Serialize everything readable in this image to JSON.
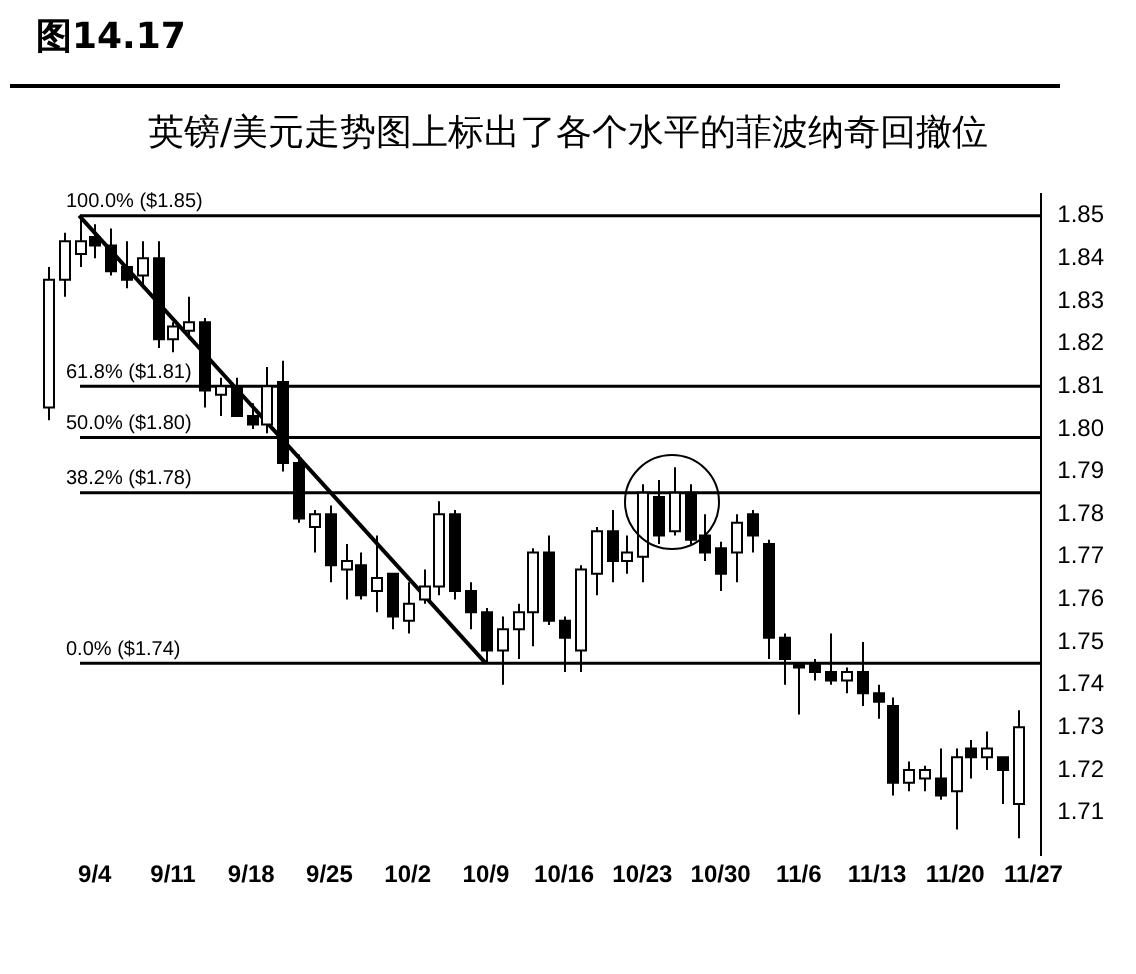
{
  "chart_data": {
    "type": "candlestick",
    "title": "图14.17",
    "subtitle": "英镑/美元走势图上标出了各个水平的菲波纳奇回撤位",
    "categories": [
      null,
      null,
      null,
      "9/4",
      null,
      null,
      null,
      null,
      "9/11",
      null,
      null,
      null,
      null,
      "9/18",
      null,
      null,
      null,
      null,
      "9/25",
      null,
      null,
      null,
      null,
      "10/2",
      null,
      null,
      null,
      null,
      "10/9",
      null,
      null,
      null,
      null,
      "10/16",
      null,
      null,
      null,
      null,
      "10/23",
      null,
      null,
      null,
      null,
      "10/30",
      null,
      null,
      null,
      null,
      "11/6",
      null,
      null,
      null,
      null,
      "11/13",
      null,
      null,
      null,
      null,
      "11/20",
      null,
      null,
      null,
      null,
      "11/27"
    ],
    "ylim": [
      1.7,
      1.855
    ],
    "yticks": [
      1.71,
      1.72,
      1.73,
      1.74,
      1.75,
      1.76,
      1.77,
      1.78,
      1.79,
      {
        "value": 1.8,
        "label": "1.80"
      },
      1.81,
      1.82,
      1.83,
      1.84,
      1.85
    ],
    "ref_lines": [
      {
        "axis": "y",
        "value": 1.85,
        "label": "100.0% ($1.85)"
      },
      {
        "axis": "y",
        "value": 1.81,
        "label": "61.8% ($1.81)"
      },
      {
        "axis": "y",
        "value": 1.798,
        "label": "50.0% ($1.80)"
      },
      {
        "axis": "y",
        "value": 1.785,
        "label": "38.2% ($1.78)"
      },
      {
        "axis": "y",
        "value": 1.745,
        "label": "0.0% ($1.74)"
      }
    ],
    "series": [
      {
        "color": "#000000",
        "colors": [
          "#ffffff",
          "#ffffff",
          "#ffffff",
          "#000000",
          "#000000",
          "#000000",
          "#ffffff",
          "#000000",
          "#ffffff",
          "#ffffff",
          "#000000",
          "#ffffff",
          "#000000",
          "#000000",
          "#ffffff",
          "#000000",
          "#000000",
          "#ffffff",
          "#000000",
          "#ffffff",
          "#000000",
          "#ffffff",
          "#000000",
          "#ffffff",
          "#ffffff",
          "#ffffff",
          "#000000",
          "#000000",
          "#000000",
          "#ffffff",
          "#ffffff",
          "#ffffff",
          "#000000",
          "#000000",
          "#ffffff",
          "#ffffff",
          "#000000",
          "#ffffff",
          "#ffffff",
          "#000000",
          "#ffffff",
          "#000000",
          "#000000",
          "#000000",
          "#ffffff",
          "#000000",
          "#000000",
          "#000000",
          "#000000",
          "#000000",
          "#000000",
          "#ffffff",
          "#000000",
          "#000000",
          "#000000",
          "#ffffff",
          "#ffffff",
          "#000000",
          "#ffffff",
          "#000000",
          "#ffffff",
          "#000000",
          "#ffffff",
          null
        ],
        "ohlc": [
          [
            1.805,
            1.838,
            1.802,
            1.835
          ],
          [
            1.835,
            1.846,
            1.831,
            1.844
          ],
          [
            1.841,
            1.85,
            1.838,
            1.844
          ],
          [
            1.845,
            1.848,
            1.84,
            1.843
          ],
          [
            1.843,
            1.847,
            1.836,
            1.837
          ],
          [
            1.838,
            1.844,
            1.833,
            1.835
          ],
          [
            1.836,
            1.844,
            1.833,
            1.84
          ],
          [
            1.84,
            1.844,
            1.819,
            1.821
          ],
          [
            1.821,
            1.825,
            1.818,
            1.824
          ],
          [
            1.823,
            1.831,
            1.821,
            1.825
          ],
          [
            1.825,
            1.826,
            1.805,
            1.809
          ],
          [
            1.808,
            1.812,
            1.803,
            1.81
          ],
          [
            1.81,
            1.812,
            1.803,
            1.803
          ],
          [
            1.803,
            1.806,
            1.8,
            1.801
          ],
          [
            1.801,
            1.8145,
            1.799,
            1.81
          ],
          [
            1.811,
            1.816,
            1.79,
            1.792
          ],
          [
            1.792,
            1.794,
            1.778,
            1.779
          ],
          [
            1.777,
            1.781,
            1.771,
            1.78
          ],
          [
            1.78,
            1.782,
            1.764,
            1.768
          ],
          [
            1.767,
            1.773,
            1.76,
            1.769
          ],
          [
            1.768,
            1.771,
            1.76,
            1.761
          ],
          [
            1.762,
            1.775,
            1.757,
            1.765
          ],
          [
            1.766,
            1.766,
            1.753,
            1.756
          ],
          [
            1.755,
            1.764,
            1.752,
            1.759
          ],
          [
            1.76,
            1.767,
            1.759,
            1.763
          ],
          [
            1.763,
            1.783,
            1.761,
            1.78
          ],
          [
            1.78,
            1.781,
            1.76,
            1.762
          ],
          [
            1.762,
            1.764,
            1.753,
            1.757
          ],
          [
            1.757,
            1.758,
            1.745,
            1.748
          ],
          [
            1.748,
            1.756,
            1.74,
            1.753
          ],
          [
            1.753,
            1.759,
            1.746,
            1.757
          ],
          [
            1.757,
            1.772,
            1.749,
            1.771
          ],
          [
            1.771,
            1.775,
            1.754,
            1.755
          ],
          [
            1.755,
            1.756,
            1.743,
            1.751
          ],
          [
            1.748,
            1.768,
            1.743,
            1.767
          ],
          [
            1.766,
            1.777,
            1.761,
            1.776
          ],
          [
            1.776,
            1.781,
            1.764,
            1.769
          ],
          [
            1.769,
            1.775,
            1.766,
            1.771
          ],
          [
            1.77,
            1.787,
            1.764,
            1.785
          ],
          [
            1.784,
            1.788,
            1.773,
            1.775
          ],
          [
            1.776,
            1.791,
            1.775,
            1.785
          ],
          [
            1.785,
            1.787,
            1.773,
            1.774
          ],
          [
            1.775,
            1.78,
            1.769,
            1.771
          ],
          [
            1.772,
            1.7735,
            1.762,
            1.766
          ],
          [
            1.771,
            1.78,
            1.764,
            1.778
          ],
          [
            1.78,
            1.781,
            1.771,
            1.775
          ],
          [
            1.773,
            1.774,
            1.746,
            1.751
          ],
          [
            1.751,
            1.752,
            1.74,
            1.746
          ],
          [
            1.745,
            1.745,
            1.733,
            1.744
          ],
          [
            1.745,
            1.746,
            1.741,
            1.743
          ],
          [
            1.743,
            1.752,
            1.74,
            1.741
          ],
          [
            1.741,
            1.744,
            1.738,
            1.743
          ],
          [
            1.743,
            1.75,
            1.735,
            1.738
          ],
          [
            1.738,
            1.74,
            1.732,
            1.736
          ],
          [
            1.735,
            1.737,
            1.714,
            1.717
          ],
          [
            1.717,
            1.722,
            1.715,
            1.72
          ],
          [
            1.718,
            1.721,
            1.715,
            1.72
          ],
          [
            1.718,
            1.725,
            1.713,
            1.714
          ],
          [
            1.715,
            1.725,
            1.706,
            1.723
          ],
          [
            1.725,
            1.727,
            1.718,
            1.723
          ],
          [
            1.723,
            1.729,
            1.72,
            1.725
          ],
          [
            1.723,
            1.723,
            1.712,
            1.72
          ],
          [
            1.712,
            1.734,
            1.704,
            1.73
          ],
          null
        ]
      },
      {
        "type": "line",
        "color": "#000000",
        "values": [
          null,
          null,
          1.85,
          null,
          null,
          null,
          null,
          null,
          null,
          null,
          null,
          null,
          null,
          null,
          null,
          null,
          null,
          null,
          null,
          null,
          null,
          null,
          null,
          null,
          null,
          null,
          null,
          null,
          1.745,
          null,
          null,
          null,
          null,
          null,
          null,
          null,
          null,
          null,
          null,
          null,
          null,
          null,
          null,
          null,
          null,
          null,
          null,
          null,
          null,
          null,
          null,
          null,
          null,
          null,
          null,
          null,
          null,
          null,
          null,
          null,
          null,
          null,
          null,
          null
        ]
      }
    ]
  }
}
